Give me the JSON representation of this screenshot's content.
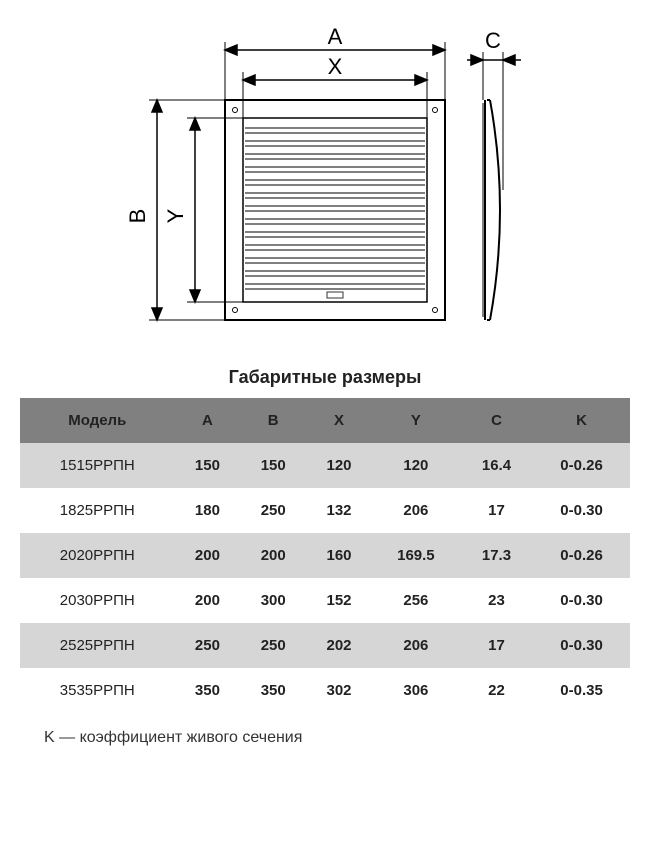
{
  "diagram": {
    "labels": {
      "A": "A",
      "X": "X",
      "B": "B",
      "Y": "Y",
      "C": "C"
    },
    "stroke": "#000000",
    "slat_stroke": "#333333",
    "fill_bg": "#ffffff",
    "label_fontsize": 22
  },
  "title": "Габаритные размеры",
  "table": {
    "header_bg": "#808080",
    "row_alt_bg": "#d6d6d6",
    "row_bg": "#ffffff",
    "text_color": "#222222",
    "columns": [
      "Модель",
      "A",
      "B",
      "X",
      "Y",
      "C",
      "K"
    ],
    "rows": [
      [
        "1515РРПН",
        "150",
        "150",
        "120",
        "120",
        "16.4",
        "0-0.26"
      ],
      [
        "1825РРПН",
        "180",
        "250",
        "132",
        "206",
        "17",
        "0-0.30"
      ],
      [
        "2020РРПН",
        "200",
        "200",
        "160",
        "169.5",
        "17.3",
        "0-0.26"
      ],
      [
        "2030РРПН",
        "200",
        "300",
        "152",
        "256",
        "23",
        "0-0.30"
      ],
      [
        "2525РРПН",
        "250",
        "250",
        "202",
        "206",
        "17",
        "0-0.30"
      ],
      [
        "3535РРПН",
        "350",
        "350",
        "302",
        "306",
        "22",
        "0-0.35"
      ]
    ]
  },
  "footnote": "K — коэффициент живого сечения"
}
